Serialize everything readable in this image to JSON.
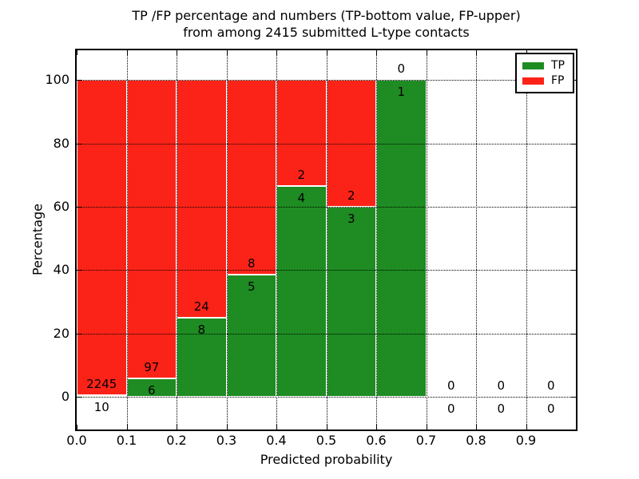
{
  "title": {
    "line1": "TP /FP percentage and numbers (TP-bottom value, FP-upper)",
    "line2": "from among 2415 submitted L-type contacts"
  },
  "axes": {
    "xlabel": "Predicted probability",
    "ylabel": "Percentage",
    "yticks": [
      0,
      20,
      40,
      60,
      80,
      100
    ],
    "xticks": [
      "0.0",
      "0.1",
      "0.2",
      "0.3",
      "0.4",
      "0.5",
      "0.6",
      "0.7",
      "0.8",
      "0.9"
    ]
  },
  "legend": {
    "items": [
      {
        "label": "TP",
        "color": "#1e8c22"
      },
      {
        "label": "FP",
        "color": "#fb2318"
      }
    ]
  },
  "colors": {
    "tp_green": "#1e8c22",
    "fp_red": "#fb2318",
    "grid": "#000000",
    "background": "#ffffff"
  },
  "chart_data": {
    "type": "bar",
    "stacked": true,
    "title": "TP /FP percentage and numbers (TP-bottom value, FP-upper) from among 2415 submitted L-type contacts",
    "xlabel": "Predicted probability",
    "ylabel": "Percentage",
    "bin_starts": [
      0.0,
      0.1,
      0.2,
      0.3,
      0.4,
      0.5,
      0.6,
      0.7,
      0.8,
      0.9
    ],
    "bin_width": 0.1,
    "series": [
      {
        "name": "TP",
        "color": "#1e8c22",
        "values": [
          10,
          6,
          8,
          5,
          4,
          3,
          1,
          0,
          0,
          0
        ]
      },
      {
        "name": "FP",
        "color": "#fb2318",
        "values": [
          2245,
          97,
          24,
          8,
          2,
          2,
          0,
          0,
          0,
          0
        ]
      }
    ],
    "tp_percent": [
      0.44,
      5.83,
      25.0,
      38.46,
      66.67,
      60.0,
      100.0,
      0.0,
      0.0,
      0.0
    ],
    "total_contacts": 2415,
    "xlim": [
      0.0,
      1.0
    ],
    "ylim": [
      -10.3,
      109.4
    ],
    "grid": true,
    "grid_style": "dotted",
    "legend_position": "upper right"
  }
}
